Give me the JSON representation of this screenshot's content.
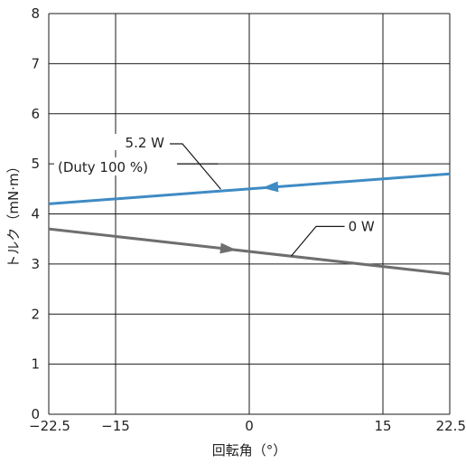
{
  "chart_data": {
    "type": "line",
    "xlabel": "回転角（°）",
    "ylabel": "トルク（mN·m）",
    "xlim": [
      -22.5,
      22.5
    ],
    "ylim": [
      0,
      8
    ],
    "x_ticks": [
      -22.5,
      -15,
      0,
      15,
      22.5
    ],
    "x_tick_labels": [
      "−22.5",
      "−15",
      "0",
      "15",
      "22.5"
    ],
    "y_ticks": [
      0,
      1,
      2,
      3,
      4,
      5,
      6,
      7,
      8
    ],
    "y_tick_labels": [
      "0",
      "1",
      "2",
      "3",
      "4",
      "5",
      "6",
      "7",
      "8"
    ],
    "grid": true,
    "series": [
      {
        "name": "5.2 W",
        "label_line1": "5.2 W",
        "label_line2": "(Duty 100 %)",
        "color": "#3f8bc4",
        "x": [
          -22.5,
          22.5
        ],
        "y": [
          4.2,
          4.8
        ],
        "arrow_direction": "left"
      },
      {
        "name": "0 W",
        "label_line1": "0 W",
        "color": "#6e6e6e",
        "x": [
          -22.5,
          22.5
        ],
        "y": [
          3.7,
          2.8
        ],
        "arrow_direction": "right"
      }
    ]
  }
}
